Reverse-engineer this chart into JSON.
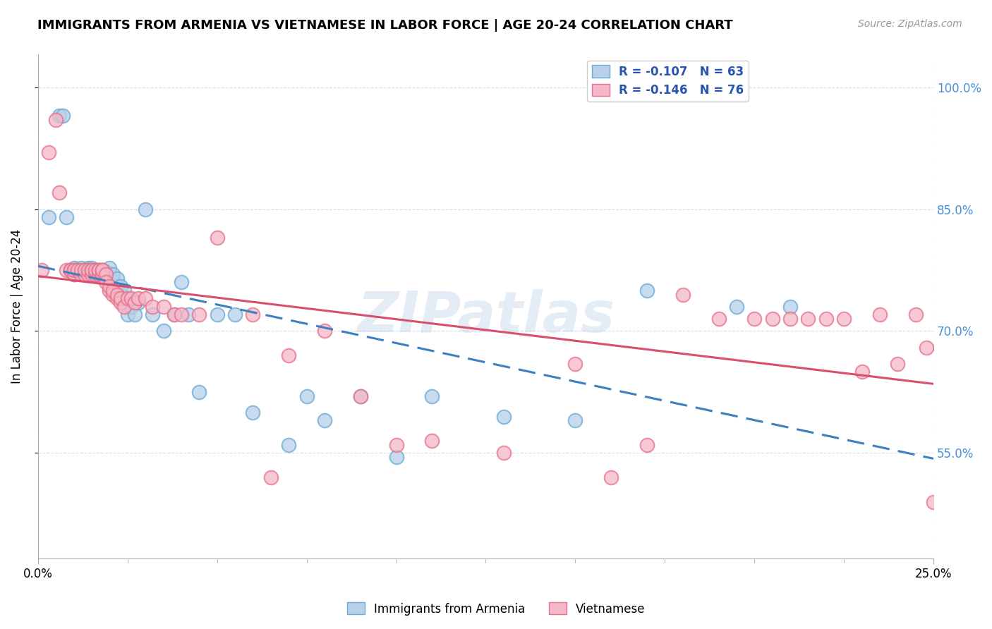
{
  "title": "IMMIGRANTS FROM ARMENIA VS VIETNAMESE IN LABOR FORCE | AGE 20-24 CORRELATION CHART",
  "source": "Source: ZipAtlas.com",
  "ylabel": "In Labor Force | Age 20-24",
  "y_ticks": [
    0.55,
    0.7,
    0.85,
    1.0
  ],
  "y_tick_labels": [
    "55.0%",
    "70.0%",
    "85.0%",
    "100.0%"
  ],
  "x_range": [
    0.0,
    0.25
  ],
  "y_range": [
    0.42,
    1.04
  ],
  "armenia_R": "-0.107",
  "armenia_N": "63",
  "vietnamese_R": "-0.146",
  "vietnamese_N": "76",
  "armenia_color": "#b8d0ea",
  "vietnamese_color": "#f5b8c8",
  "armenia_edge_color": "#6aaad4",
  "vietnamese_edge_color": "#e8708a",
  "armenia_line_color": "#3d7fc1",
  "vietnamese_line_color": "#d94f6e",
  "legend_text_color": "#2855b0",
  "watermark": "ZIPatlas",
  "grid_color": "#d0d8e8",
  "armenia_x": [
    0.003,
    0.006,
    0.007,
    0.008,
    0.009,
    0.01,
    0.01,
    0.011,
    0.012,
    0.013,
    0.013,
    0.014,
    0.014,
    0.015,
    0.015,
    0.015,
    0.016,
    0.016,
    0.016,
    0.017,
    0.017,
    0.017,
    0.018,
    0.018,
    0.018,
    0.019,
    0.019,
    0.02,
    0.02,
    0.02,
    0.021,
    0.021,
    0.022,
    0.022,
    0.023,
    0.023,
    0.024,
    0.024,
    0.025,
    0.026,
    0.027,
    0.028,
    0.03,
    0.032,
    0.035,
    0.038,
    0.04,
    0.042,
    0.045,
    0.05,
    0.055,
    0.06,
    0.07,
    0.075,
    0.08,
    0.09,
    0.1,
    0.11,
    0.13,
    0.15,
    0.17,
    0.195,
    0.21
  ],
  "armenia_y": [
    0.84,
    0.965,
    0.965,
    0.84,
    0.775,
    0.77,
    0.778,
    0.775,
    0.778,
    0.775,
    0.775,
    0.775,
    0.778,
    0.77,
    0.775,
    0.778,
    0.77,
    0.775,
    0.775,
    0.77,
    0.773,
    0.775,
    0.77,
    0.773,
    0.775,
    0.77,
    0.773,
    0.76,
    0.77,
    0.778,
    0.76,
    0.77,
    0.755,
    0.765,
    0.745,
    0.755,
    0.74,
    0.75,
    0.72,
    0.73,
    0.72,
    0.735,
    0.85,
    0.72,
    0.7,
    0.72,
    0.76,
    0.72,
    0.625,
    0.72,
    0.72,
    0.6,
    0.56,
    0.62,
    0.59,
    0.62,
    0.545,
    0.62,
    0.595,
    0.59,
    0.75,
    0.73,
    0.73
  ],
  "vietnamese_x": [
    0.001,
    0.003,
    0.005,
    0.006,
    0.008,
    0.009,
    0.009,
    0.01,
    0.01,
    0.01,
    0.011,
    0.012,
    0.012,
    0.013,
    0.013,
    0.014,
    0.014,
    0.015,
    0.015,
    0.015,
    0.016,
    0.016,
    0.017,
    0.017,
    0.017,
    0.018,
    0.018,
    0.018,
    0.019,
    0.019,
    0.02,
    0.02,
    0.021,
    0.021,
    0.022,
    0.022,
    0.023,
    0.023,
    0.024,
    0.025,
    0.026,
    0.027,
    0.028,
    0.03,
    0.032,
    0.035,
    0.038,
    0.04,
    0.045,
    0.05,
    0.06,
    0.065,
    0.07,
    0.08,
    0.09,
    0.1,
    0.11,
    0.13,
    0.15,
    0.16,
    0.17,
    0.18,
    0.19,
    0.2,
    0.205,
    0.21,
    0.215,
    0.22,
    0.225,
    0.23,
    0.235,
    0.24,
    0.245,
    0.248,
    0.25,
    0.252
  ],
  "vietnamese_y": [
    0.775,
    0.92,
    0.96,
    0.87,
    0.775,
    0.775,
    0.775,
    0.775,
    0.77,
    0.775,
    0.775,
    0.77,
    0.775,
    0.77,
    0.775,
    0.77,
    0.775,
    0.77,
    0.775,
    0.775,
    0.77,
    0.775,
    0.77,
    0.775,
    0.775,
    0.77,
    0.775,
    0.775,
    0.77,
    0.76,
    0.75,
    0.755,
    0.745,
    0.75,
    0.74,
    0.745,
    0.735,
    0.74,
    0.73,
    0.74,
    0.74,
    0.735,
    0.74,
    0.74,
    0.73,
    0.73,
    0.72,
    0.72,
    0.72,
    0.815,
    0.72,
    0.52,
    0.67,
    0.7,
    0.62,
    0.56,
    0.565,
    0.55,
    0.66,
    0.52,
    0.56,
    0.745,
    0.715,
    0.715,
    0.715,
    0.715,
    0.715,
    0.715,
    0.715,
    0.65,
    0.72,
    0.66,
    0.72,
    0.68,
    0.49,
    0.68
  ]
}
